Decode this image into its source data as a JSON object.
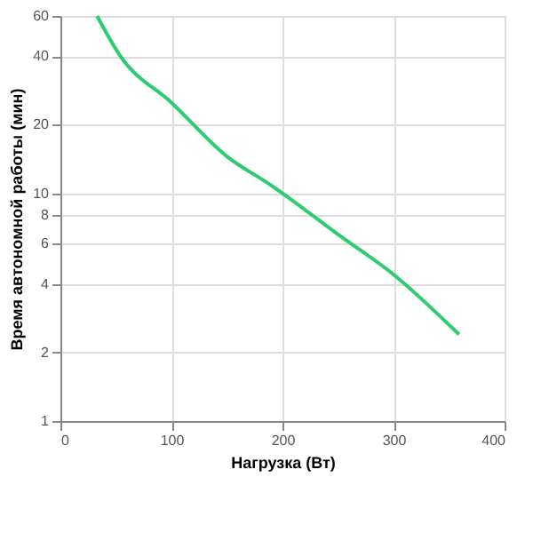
{
  "chart_data": {
    "type": "line",
    "xlabel": "Нагрузка (Вт)",
    "ylabel": "Время автономной работы (мин)",
    "x": [
      33,
      54,
      100,
      150,
      189,
      200,
      250,
      300,
      359
    ],
    "series": [
      {
        "color": "#2ecc71",
        "values": [
          60,
          40,
          25,
          14.5,
          10.9,
          10,
          6.6,
          4.4,
          2.4
        ]
      }
    ],
    "xlim": [
      0,
      400
    ],
    "xticks": [
      0,
      100,
      200,
      300,
      400
    ],
    "ylim": [
      1,
      60
    ],
    "yticks": [
      1,
      2,
      4,
      6,
      8,
      10,
      20,
      40,
      60
    ],
    "log": "y",
    "grid": true,
    "marker": "none",
    "line_style": "solid"
  }
}
